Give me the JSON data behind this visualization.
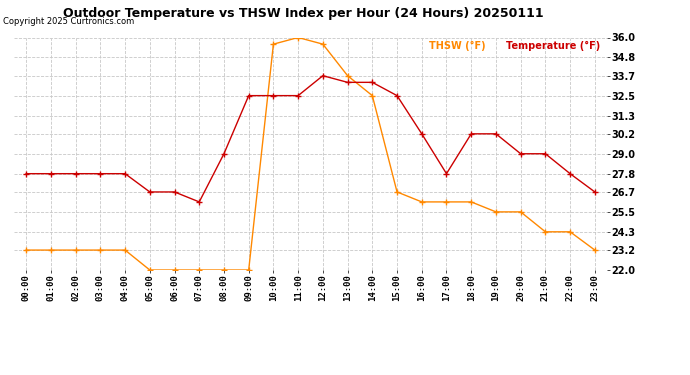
{
  "title": "Outdoor Temperature vs THSW Index per Hour (24 Hours) 20250111",
  "copyright": "Copyright 2025 Curtronics.com",
  "legend_thsw": "THSW (°F)",
  "legend_temp": "Temperature (°F)",
  "hours": [
    0,
    1,
    2,
    3,
    4,
    5,
    6,
    7,
    8,
    9,
    10,
    11,
    12,
    13,
    14,
    15,
    16,
    17,
    18,
    19,
    20,
    21,
    22,
    23
  ],
  "temperature": [
    27.8,
    27.8,
    27.8,
    27.8,
    27.8,
    26.7,
    26.7,
    26.1,
    29.0,
    32.5,
    32.5,
    32.5,
    33.7,
    33.3,
    33.3,
    32.5,
    30.2,
    27.8,
    30.2,
    30.2,
    29.0,
    29.0,
    27.8,
    26.7
  ],
  "thsw": [
    23.2,
    23.2,
    23.2,
    23.2,
    23.2,
    22.0,
    22.0,
    22.0,
    22.0,
    22.0,
    35.6,
    36.0,
    35.6,
    33.7,
    32.5,
    26.7,
    26.1,
    26.1,
    26.1,
    25.5,
    25.5,
    24.3,
    24.3,
    23.2
  ],
  "ylim_min": 22.0,
  "ylim_max": 36.0,
  "yticks": [
    22.0,
    23.2,
    24.3,
    25.5,
    26.7,
    27.8,
    29.0,
    30.2,
    31.3,
    32.5,
    33.7,
    34.8,
    36.0
  ],
  "temp_color": "#cc0000",
  "thsw_color": "#ff8800",
  "title_color": "#000000",
  "copyright_color": "#000000",
  "legend_thsw_color": "#ff8800",
  "legend_temp_color": "#cc0000",
  "bg_color": "#ffffff",
  "grid_color": "#c8c8c8",
  "linewidth": 1.0,
  "markersize": 5,
  "markeredgewidth": 1.0,
  "title_fontsize": 9,
  "tick_fontsize": 6.5,
  "copyright_fontsize": 6,
  "legend_fontsize": 7
}
